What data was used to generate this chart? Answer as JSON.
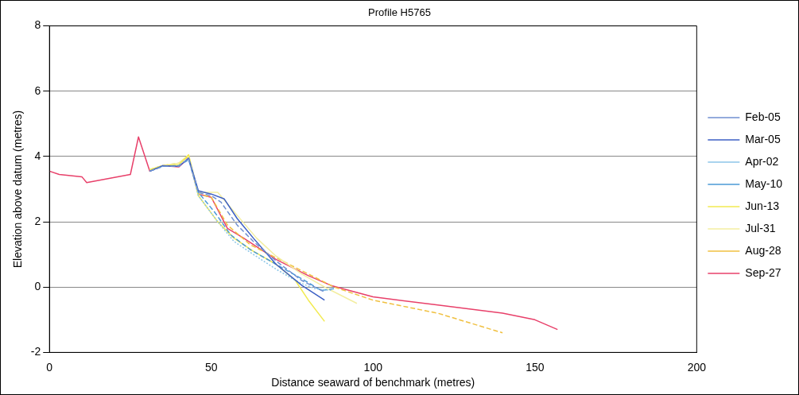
{
  "chart_data": {
    "type": "line",
    "title": "Profile H5765",
    "xlabel": "Distance seaward of benchmark (metres)",
    "ylabel": "Elevation above datum (metres)",
    "xlim": [
      0,
      200
    ],
    "xticks": [
      0,
      50,
      100,
      150,
      200
    ],
    "ylim": [
      -2,
      8
    ],
    "yticks": [
      -2,
      0,
      2,
      4,
      6,
      8
    ],
    "grid": "y",
    "legend": "right",
    "marker": "none",
    "series": [
      {
        "name": "Feb-05",
        "color": "#6f8fd0",
        "line_style": "dashed",
        "x": [
          31,
          35,
          40,
          43,
          46,
          50,
          53,
          58,
          63,
          70,
          78,
          85
        ],
        "values": [
          3.55,
          3.7,
          3.7,
          3.95,
          2.9,
          2.8,
          2.6,
          1.9,
          1.4,
          0.8,
          0.2,
          -0.15
        ]
      },
      {
        "name": "Mar-05",
        "color": "#3c5fc4",
        "line_style": "solid",
        "x": [
          31,
          35,
          40,
          43,
          46,
          50,
          54,
          58,
          63,
          70,
          78,
          85
        ],
        "values": [
          3.55,
          3.72,
          3.7,
          3.95,
          2.95,
          2.85,
          2.7,
          2.1,
          1.5,
          0.7,
          0.05,
          -0.4
        ]
      },
      {
        "name": "Apr-02",
        "color": "#8cc6e8",
        "line_style": "dotted",
        "x": [
          31,
          35,
          40,
          43,
          46,
          52,
          57,
          63,
          70,
          77,
          82,
          87
        ],
        "values": [
          3.55,
          3.7,
          3.72,
          3.95,
          2.8,
          2.0,
          1.4,
          1.0,
          0.55,
          0.15,
          -0.05,
          -0.1
        ]
      },
      {
        "name": "May-10",
        "color": "#4a9ad6",
        "line_style": "dashed",
        "x": [
          31,
          35,
          40,
          43,
          46,
          51,
          56,
          62,
          70,
          78,
          84,
          88
        ],
        "values": [
          3.55,
          3.7,
          3.72,
          3.9,
          2.9,
          2.3,
          1.6,
          1.15,
          0.7,
          0.25,
          -0.1,
          -0.05
        ]
      },
      {
        "name": "Jun-13",
        "color": "#f2ea50",
        "line_style": "solid",
        "x": [
          31,
          35,
          40,
          43,
          46,
          52,
          57,
          63,
          70,
          76,
          80,
          85
        ],
        "values": [
          3.6,
          3.72,
          3.75,
          4.05,
          2.8,
          2.0,
          1.5,
          1.1,
          0.7,
          0.2,
          -0.4,
          -1.05
        ]
      },
      {
        "name": "Jul-31",
        "color": "#f3eea0",
        "line_style": "solid",
        "x": [
          31,
          35,
          40,
          43,
          46,
          52,
          58,
          64,
          70,
          78,
          86,
          95
        ],
        "values": [
          3.6,
          3.72,
          3.8,
          4.05,
          2.9,
          2.9,
          2.2,
          1.5,
          0.95,
          0.4,
          -0.05,
          -0.5
        ]
      },
      {
        "name": "Aug-28",
        "color": "#f0c040",
        "line_style": "dashed",
        "x": [
          31,
          35,
          40,
          43,
          46,
          50,
          55,
          62,
          70,
          80,
          88,
          100,
          120,
          140
        ],
        "values": [
          3.6,
          3.72,
          3.8,
          4.0,
          2.85,
          2.75,
          1.9,
          1.3,
          0.9,
          0.4,
          0.0,
          -0.4,
          -0.8,
          -1.4
        ]
      },
      {
        "name": "Sep-27",
        "color": "#e8406a",
        "line_style": "solid",
        "x": [
          0,
          3,
          10,
          11.5,
          25,
          27.5,
          31,
          35,
          40,
          43,
          46,
          50,
          55,
          60,
          70,
          80,
          87,
          100,
          120,
          140,
          150,
          157
        ],
        "values": [
          3.55,
          3.45,
          3.38,
          3.2,
          3.45,
          4.6,
          3.55,
          3.72,
          3.68,
          3.95,
          2.85,
          2.75,
          1.8,
          1.5,
          0.85,
          0.35,
          0.05,
          -0.3,
          -0.55,
          -0.8,
          -1.0,
          -1.3
        ]
      }
    ]
  }
}
